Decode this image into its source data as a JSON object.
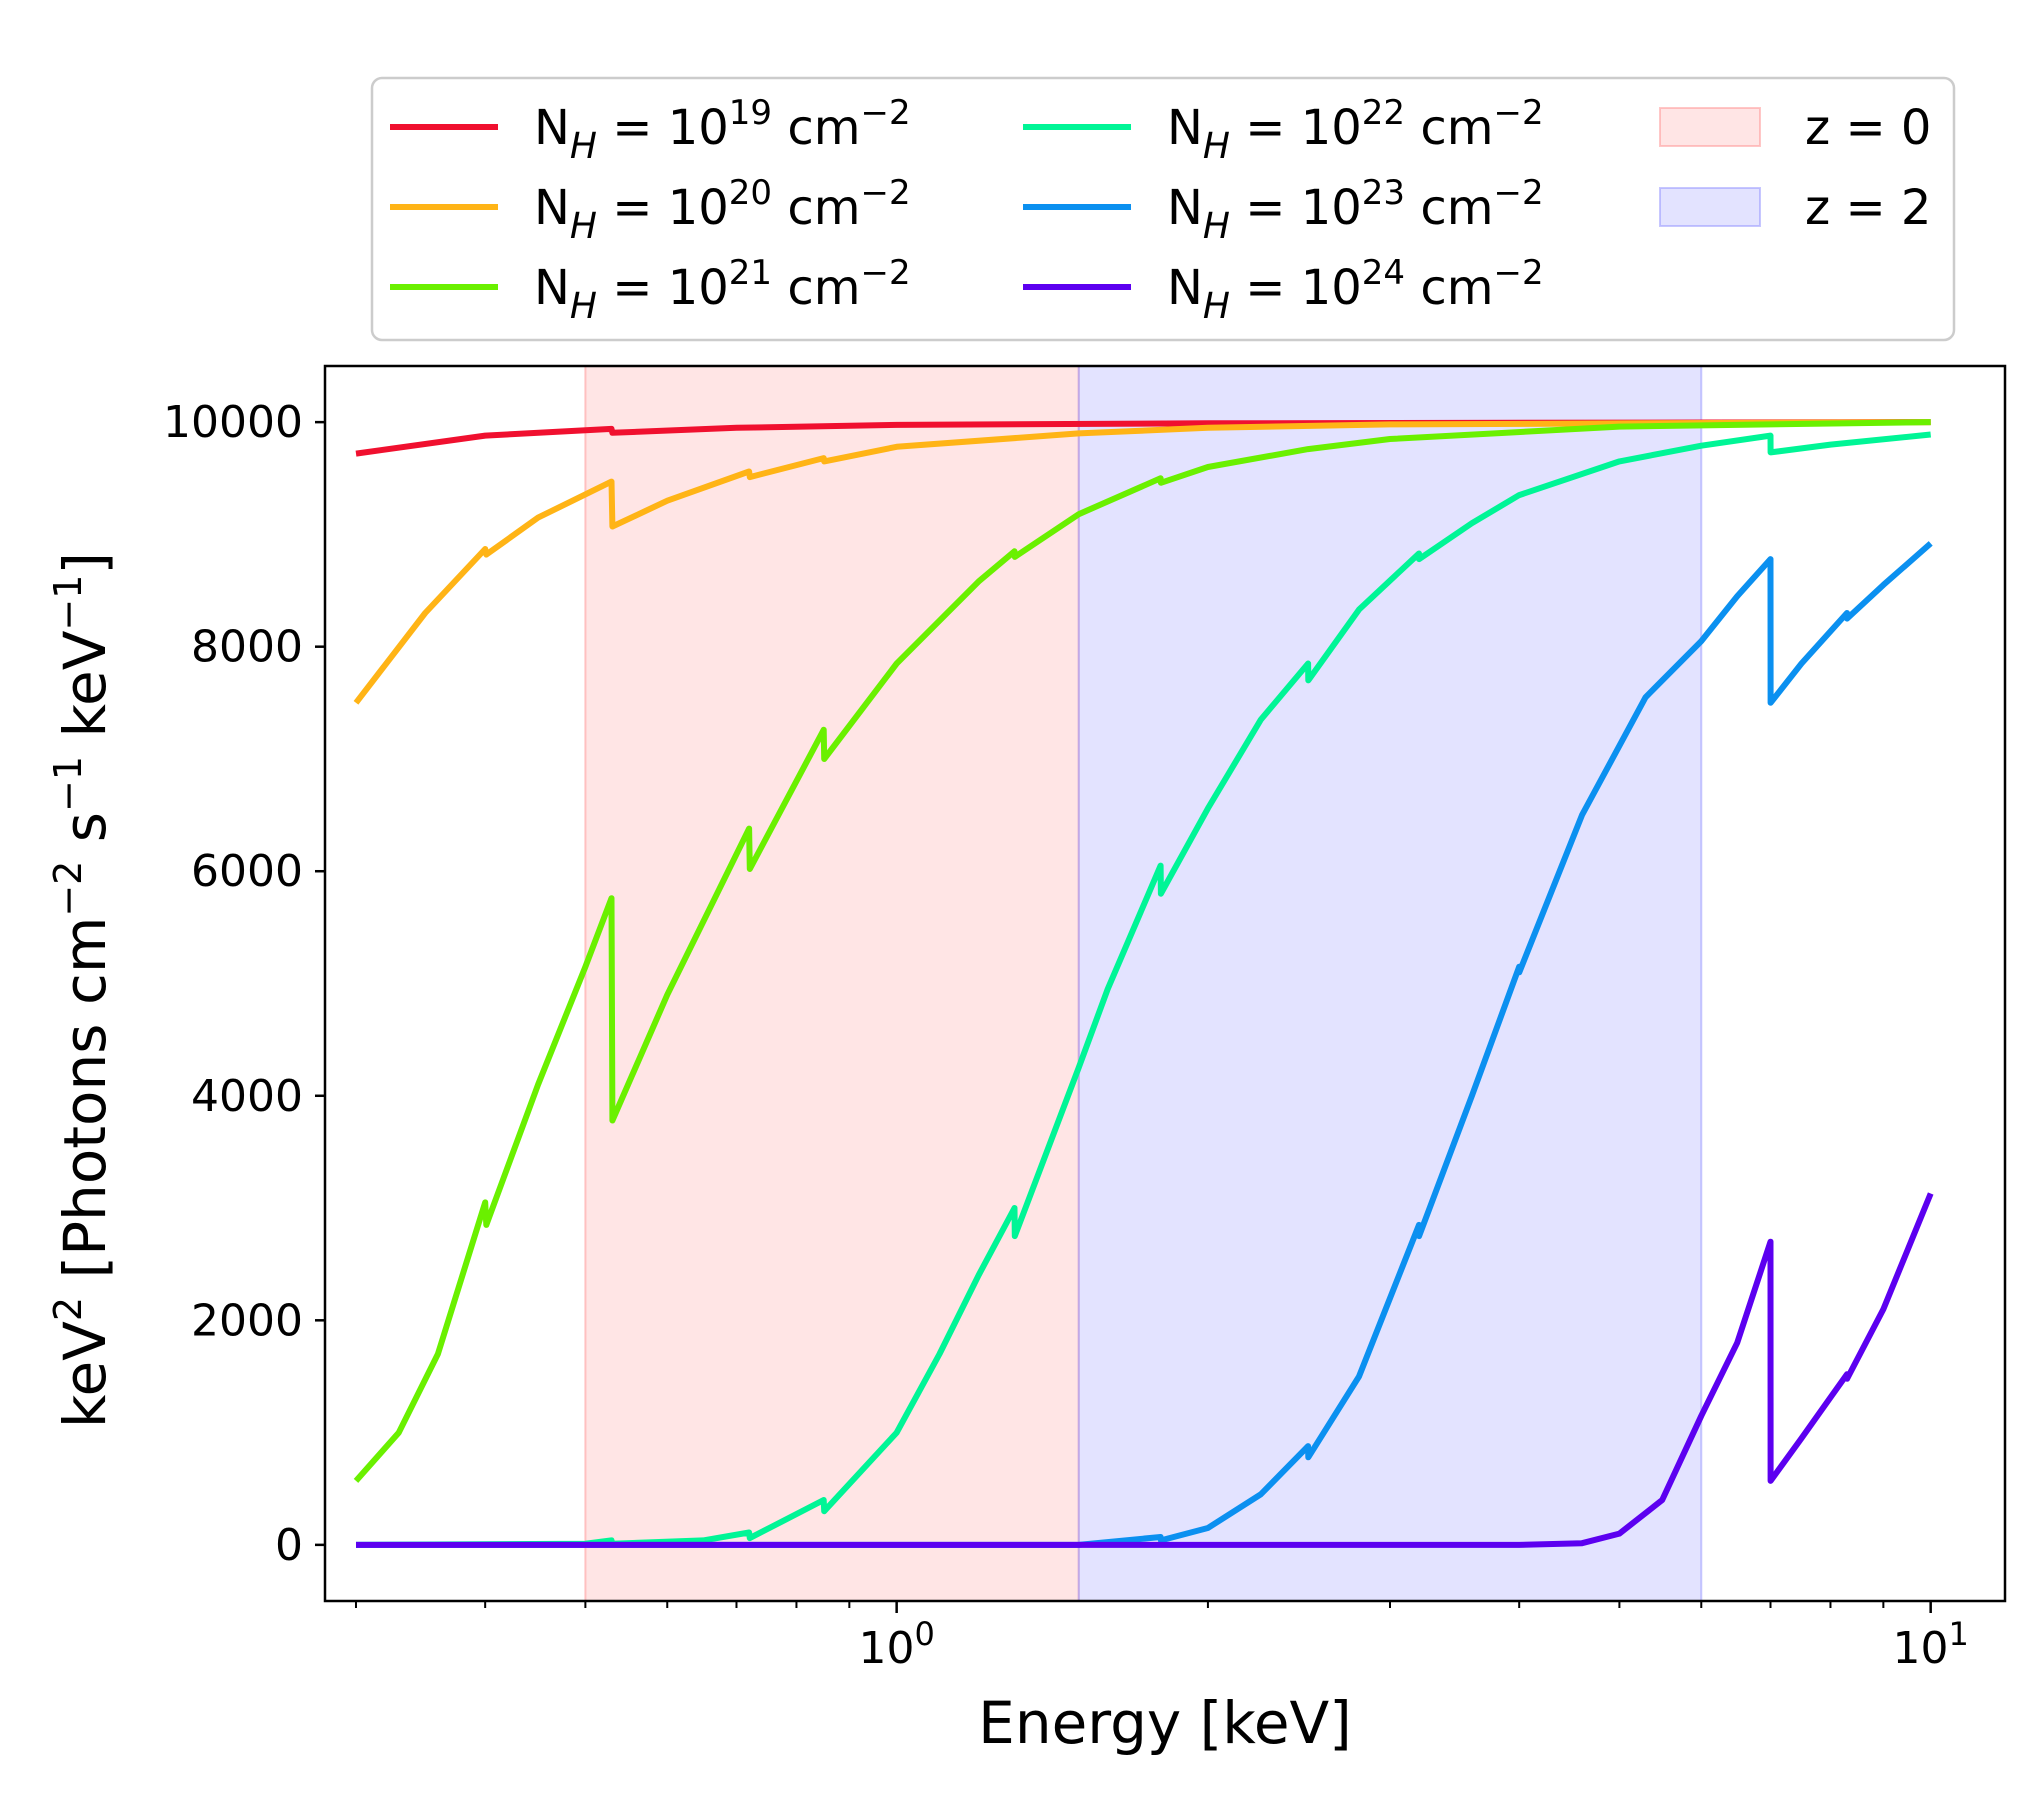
{
  "chart_data": {
    "type": "line",
    "title": "",
    "xlabel": "Energy [keV]",
    "ylabel": {
      "base": "keV",
      "exp1": "2",
      "mid": " [Photons cm",
      "exp2": "−2",
      "mid2": " s",
      "exp3": "−1",
      "mid3": " keV",
      "exp4": "−1",
      "end": "]"
    },
    "xscale": "log",
    "xlim": [
      0.28,
      11.8
    ],
    "ylim": [
      -500,
      10500
    ],
    "xticks": [
      {
        "value": 1,
        "base": "10",
        "exp": "0"
      },
      {
        "value": 10,
        "base": "10",
        "exp": "1"
      }
    ],
    "yticks": [
      0,
      2000,
      4000,
      6000,
      8000,
      10000
    ],
    "spans": [
      {
        "name": "z = 0",
        "xmin": 0.5,
        "xmax": 1.5,
        "color": "#ff9999",
        "opacity": 0.25
      },
      {
        "name": "z = 2",
        "xmin": 1.5,
        "xmax": 6.0,
        "color": "#9999ff",
        "opacity": 0.28
      }
    ],
    "legend": {
      "placement": "above plot",
      "columns": 3
    },
    "series": [
      {
        "name": "N_H = 10^19 cm^-2",
        "base": "N",
        "sub": "H",
        "mid": " = 10",
        "exp": "19",
        "unit": " cm",
        "unitexp": "−2",
        "color": "#f0102f",
        "points": [
          [
            0.3,
            9720
          ],
          [
            0.4,
            9880
          ],
          [
            0.53,
            9940
          ],
          [
            0.531,
            9905
          ],
          [
            0.7,
            9950
          ],
          [
            1,
            9975
          ],
          [
            2,
            9990
          ],
          [
            10,
            10000
          ]
        ]
      },
      {
        "name": "N_H = 10^20 cm^-2",
        "base": "N",
        "sub": "H",
        "mid": " = 10",
        "exp": "20",
        "unit": " cm",
        "unitexp": "−2",
        "color": "#ffb416",
        "points": [
          [
            0.3,
            7500
          ],
          [
            0.35,
            8300
          ],
          [
            0.4,
            8870
          ],
          [
            0.401,
            8820
          ],
          [
            0.45,
            9150
          ],
          [
            0.53,
            9470
          ],
          [
            0.531,
            9070
          ],
          [
            0.6,
            9300
          ],
          [
            0.72,
            9560
          ],
          [
            0.721,
            9510
          ],
          [
            0.85,
            9680
          ],
          [
            0.851,
            9650
          ],
          [
            1,
            9780
          ],
          [
            1.5,
            9900
          ],
          [
            2,
            9950
          ],
          [
            3,
            9980
          ],
          [
            10,
            10000
          ]
        ]
      },
      {
        "name": "N_H = 10^21 cm^-2",
        "base": "N",
        "sub": "H",
        "mid": " = 10",
        "exp": "21",
        "unit": " cm",
        "unitexp": "−2",
        "color": "#6af000",
        "points": [
          [
            0.3,
            570
          ],
          [
            0.33,
            1000
          ],
          [
            0.36,
            1700
          ],
          [
            0.4,
            3050
          ],
          [
            0.401,
            2850
          ],
          [
            0.45,
            4100
          ],
          [
            0.5,
            5150
          ],
          [
            0.53,
            5760
          ],
          [
            0.531,
            3780
          ],
          [
            0.6,
            4900
          ],
          [
            0.72,
            6380
          ],
          [
            0.721,
            6020
          ],
          [
            0.85,
            7260
          ],
          [
            0.851,
            7000
          ],
          [
            1,
            7850
          ],
          [
            1.2,
            8580
          ],
          [
            1.3,
            8850
          ],
          [
            1.301,
            8800
          ],
          [
            1.5,
            9180
          ],
          [
            1.8,
            9500
          ],
          [
            1.801,
            9460
          ],
          [
            2,
            9600
          ],
          [
            2.5,
            9760
          ],
          [
            3,
            9850
          ],
          [
            5,
            9960
          ],
          [
            10,
            10000
          ]
        ]
      },
      {
        "name": "N_H = 10^22 cm^-2",
        "base": "N",
        "sub": "H",
        "mid": " = 10",
        "exp": "22",
        "unit": " cm",
        "unitexp": "−2",
        "color": "#00f596",
        "points": [
          [
            0.3,
            0
          ],
          [
            0.5,
            10
          ],
          [
            0.53,
            40
          ],
          [
            0.531,
            10
          ],
          [
            0.65,
            40
          ],
          [
            0.72,
            110
          ],
          [
            0.721,
            60
          ],
          [
            0.85,
            400
          ],
          [
            0.851,
            300
          ],
          [
            1,
            1000
          ],
          [
            1.1,
            1700
          ],
          [
            1.2,
            2400
          ],
          [
            1.3,
            3000
          ],
          [
            1.301,
            2750
          ],
          [
            1.5,
            4250
          ],
          [
            1.6,
            4950
          ],
          [
            1.8,
            6050
          ],
          [
            1.801,
            5800
          ],
          [
            2,
            6560
          ],
          [
            2.25,
            7350
          ],
          [
            2.5,
            7850
          ],
          [
            2.501,
            7700
          ],
          [
            2.8,
            8330
          ],
          [
            3.2,
            8830
          ],
          [
            3.201,
            8780
          ],
          [
            3.6,
            9100
          ],
          [
            4,
            9350
          ],
          [
            5,
            9650
          ],
          [
            6,
            9790
          ],
          [
            7,
            9880
          ],
          [
            7.001,
            9730
          ],
          [
            8,
            9800
          ],
          [
            10,
            9890
          ]
        ]
      },
      {
        "name": "N_H = 10^23 cm^-2",
        "base": "N",
        "sub": "H",
        "mid": " = 10",
        "exp": "23",
        "unit": " cm",
        "unitexp": "−2",
        "color": "#0b90f0",
        "points": [
          [
            0.3,
            0
          ],
          [
            1.5,
            0
          ],
          [
            1.8,
            70
          ],
          [
            1.801,
            40
          ],
          [
            2,
            150
          ],
          [
            2.25,
            450
          ],
          [
            2.5,
            880
          ],
          [
            2.501,
            780
          ],
          [
            2.8,
            1500
          ],
          [
            3.2,
            2850
          ],
          [
            3.201,
            2750
          ],
          [
            3.6,
            4000
          ],
          [
            4,
            5150
          ],
          [
            4.001,
            5100
          ],
          [
            4.6,
            6500
          ],
          [
            5.3,
            7550
          ],
          [
            6,
            8050
          ],
          [
            6.5,
            8450
          ],
          [
            7,
            8780
          ],
          [
            7.001,
            7500
          ],
          [
            7.5,
            7850
          ],
          [
            8.3,
            8300
          ],
          [
            8.301,
            8250
          ],
          [
            9,
            8550
          ],
          [
            10,
            8920
          ]
        ]
      },
      {
        "name": "N_H = 10^24 cm^-2",
        "base": "N",
        "sub": "H",
        "mid": " = 10",
        "exp": "24",
        "unit": " cm",
        "unitexp": "−2",
        "color": "#5c00f0",
        "points": [
          [
            0.3,
            0
          ],
          [
            4,
            0
          ],
          [
            4.6,
            15
          ],
          [
            5,
            100
          ],
          [
            5.5,
            400
          ],
          [
            6,
            1150
          ],
          [
            6.5,
            1800
          ],
          [
            7,
            2700
          ],
          [
            7.001,
            570
          ],
          [
            7.5,
            950
          ],
          [
            8.3,
            1520
          ],
          [
            8.301,
            1480
          ],
          [
            9,
            2100
          ],
          [
            10,
            3130
          ]
        ]
      }
    ]
  }
}
